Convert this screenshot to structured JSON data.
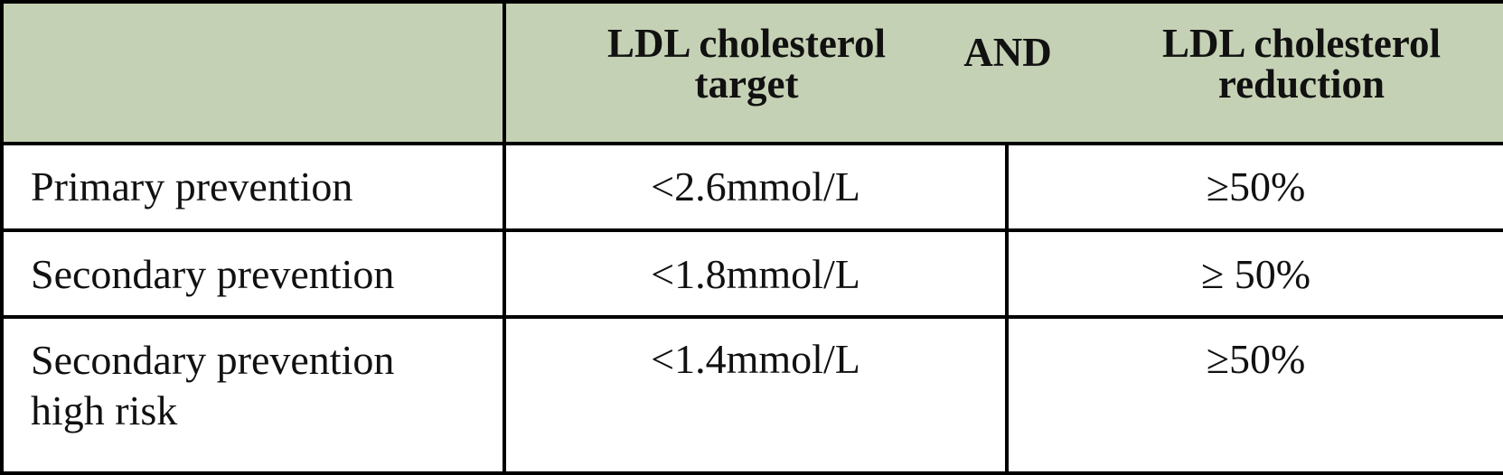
{
  "table": {
    "header": [
      "LDL cholesterol target",
      "AND",
      "LDL cholesterol reduction"
    ],
    "rows": [
      [
        "Primary prevention",
        "<2.6mmol/L",
        "≥50%"
      ],
      [
        "Secondary prevention",
        "<1.8mmol/L",
        "≥ 50%"
      ],
      [
        "Secondary prevention high risk",
        "<1.4mmol/L",
        "≥50%"
      ]
    ]
  }
}
